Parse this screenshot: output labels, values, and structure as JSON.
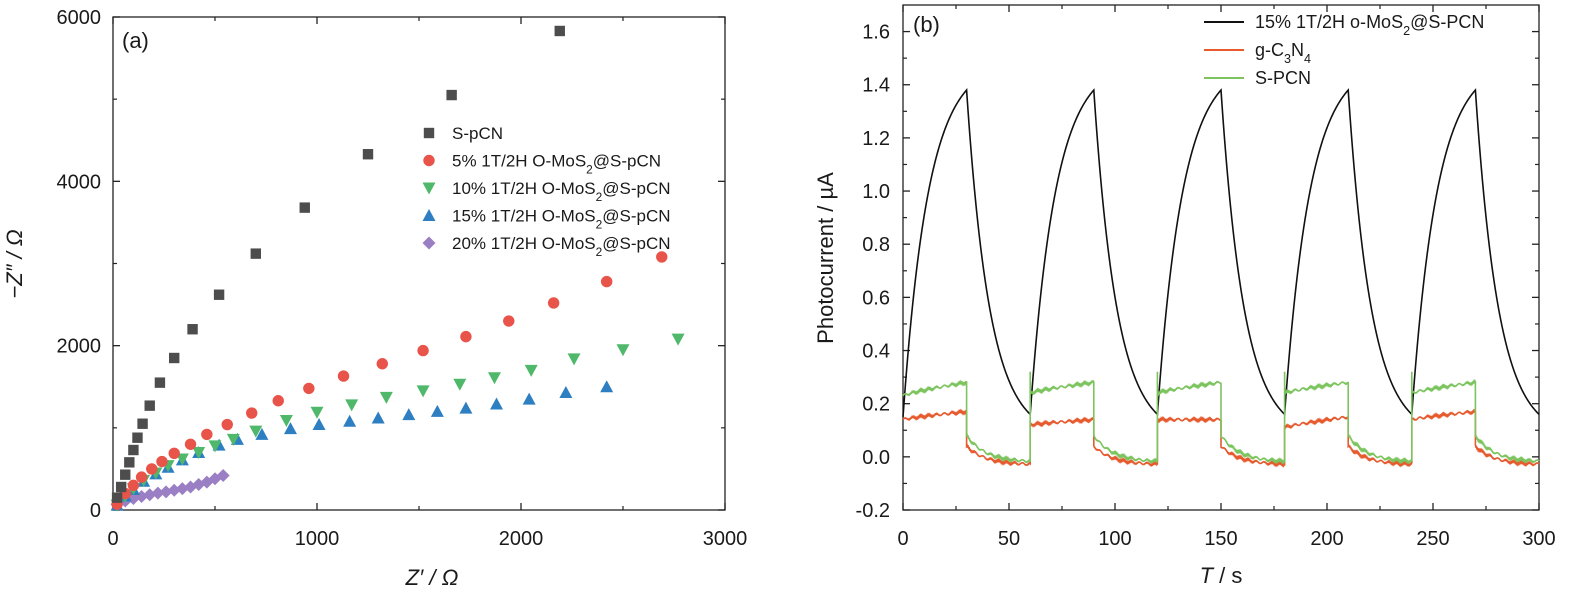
{
  "chart_data": [
    {
      "type": "scatter",
      "panel_label": "(a)",
      "xlabel": "Z′ / Ω",
      "ylabel": "−Z″ / Ω",
      "xlim": [
        0,
        3000
      ],
      "ylim": [
        0,
        6000
      ],
      "x_ticks": [
        "0",
        "1000",
        "2000",
        "3000"
      ],
      "y_ticks": [
        "0",
        "2000",
        "4000",
        "6000"
      ],
      "legend_position": "upper-middle",
      "series": [
        {
          "name": "S-pCN",
          "marker": "square",
          "color": "#4d4d4d",
          "x": [
            20,
            40,
            60,
            80,
            100,
            120,
            145,
            180,
            230,
            300,
            390,
            520,
            700,
            940,
            1250,
            1660,
            2190
          ],
          "y": [
            150,
            280,
            430,
            580,
            730,
            880,
            1050,
            1270,
            1550,
            1850,
            2200,
            2620,
            3120,
            3680,
            4330,
            5050,
            5830
          ]
        },
        {
          "name": "5% 1T/2H O-MoS2@S-pCN",
          "marker": "circle",
          "color": "#e8534a",
          "x": [
            20,
            60,
            100,
            140,
            190,
            240,
            300,
            380,
            460,
            560,
            680,
            810,
            960,
            1130,
            1320,
            1520,
            1730,
            1940,
            2160,
            2420,
            2690
          ],
          "y": [
            70,
            200,
            300,
            400,
            500,
            590,
            690,
            800,
            920,
            1040,
            1180,
            1330,
            1480,
            1630,
            1780,
            1940,
            2110,
            2300,
            2520,
            2780,
            3080
          ]
        },
        {
          "name": "10% 1T/2H O-MoS2@S-pCN",
          "marker": "triangle-down",
          "color": "#4fb86a",
          "x": [
            20,
            60,
            100,
            150,
            210,
            270,
            340,
            420,
            500,
            590,
            700,
            850,
            1000,
            1170,
            1340,
            1520,
            1700,
            1870,
            2050,
            2260,
            2500,
            2770
          ],
          "y": [
            60,
            170,
            260,
            360,
            450,
            540,
            620,
            700,
            780,
            860,
            960,
            1090,
            1190,
            1280,
            1370,
            1450,
            1530,
            1610,
            1700,
            1840,
            1950,
            2080
          ]
        },
        {
          "name": "15% 1T/2H O-MoS2@S-pCN",
          "marker": "triangle-up",
          "color": "#2e7fc2",
          "x": [
            20,
            60,
            100,
            150,
            210,
            270,
            340,
            420,
            520,
            610,
            730,
            870,
            1010,
            1160,
            1300,
            1450,
            1590,
            1730,
            1880,
            2040,
            2220,
            2420
          ],
          "y": [
            60,
            170,
            250,
            350,
            440,
            520,
            610,
            700,
            790,
            860,
            920,
            990,
            1040,
            1080,
            1120,
            1160,
            1200,
            1240,
            1290,
            1350,
            1430,
            1500
          ]
        },
        {
          "name": "20% 1T/2H O-MoS2@S-pCN",
          "marker": "diamond",
          "color": "#9b7fc4",
          "x": [
            20,
            60,
            100,
            140,
            180,
            220,
            260,
            300,
            340,
            380,
            420,
            460,
            500,
            540
          ],
          "y": [
            70,
            110,
            140,
            165,
            185,
            205,
            220,
            240,
            260,
            280,
            310,
            340,
            380,
            420
          ]
        }
      ]
    },
    {
      "type": "line",
      "panel_label": "(b)",
      "xlabel_var": "T",
      "xlabel_unit": " / s",
      "ylabel": "Photocurrent / µA",
      "xlim": [
        0,
        300
      ],
      "ylim": [
        -0.2,
        1.7
      ],
      "x_ticks": [
        "0",
        "50",
        "100",
        "150",
        "200",
        "250",
        "300"
      ],
      "y_ticks": [
        "-0.2",
        "0.0",
        "0.2",
        "0.4",
        "0.6",
        "0.8",
        "1.0",
        "1.2",
        "1.4",
        "1.6"
      ],
      "legend_position": "top-right",
      "light_on_off_cycle_s": 30,
      "series": [
        {
          "name": "15% 1T/2H o-MoS2@S-PCN",
          "color": "#111111",
          "on_start": [
            0,
            60,
            120,
            180,
            240
          ],
          "on_low": [
            0.15,
            0.16,
            0.16,
            0.16,
            0.16
          ],
          "on_peak": [
            1.38,
            1.38,
            1.38,
            1.38,
            1.38
          ],
          "off_end": [
            0.16,
            0.16,
            0.16,
            0.16,
            0.16
          ]
        },
        {
          "name": "g-C3N4",
          "color": "#e65a2e",
          "on_levels_start": [
            0.14,
            0.12,
            0.14,
            0.11,
            0.14
          ],
          "on_levels_end": [
            0.17,
            0.14,
            0.14,
            0.15,
            0.17
          ],
          "off_start": 0.04,
          "off_end": -0.03
        },
        {
          "name": "S-PCN",
          "color": "#7cc45e",
          "on_levels_start": [
            0.23,
            0.24,
            0.24,
            0.24,
            0.24
          ],
          "on_levels_end": [
            0.28,
            0.28,
            0.28,
            0.28,
            0.28
          ],
          "spike": 0.3,
          "off_start": 0.08,
          "off_end": -0.02
        }
      ]
    }
  ]
}
